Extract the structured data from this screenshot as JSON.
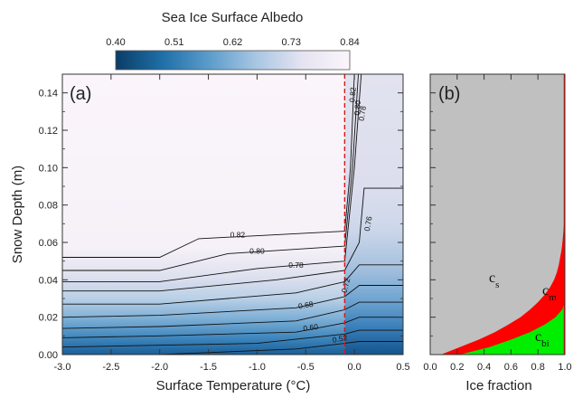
{
  "colorbar": {
    "title": "Sea Ice Surface Albedo",
    "ticks": [
      "0.40",
      "0.51",
      "0.62",
      "0.73",
      "0.84"
    ],
    "range": [
      0.4,
      0.84
    ],
    "colors": [
      "#0b3d66",
      "#1f6fa8",
      "#5c9ccb",
      "#a9c6e3",
      "#e6e4f1",
      "#fbf5fb"
    ]
  },
  "chart_data": [
    {
      "type": "contour",
      "panel_label": "(a)",
      "xlabel": "Surface Temperature (°C)",
      "ylabel": "Snow Depth (m)",
      "xlim": [
        -3.0,
        0.5
      ],
      "ylim": [
        0.0,
        0.15
      ],
      "xticks": [
        "-3.0",
        "-2.5",
        "-2.0",
        "-1.5",
        "-1.0",
        "-0.5",
        "0.0",
        "0.5"
      ],
      "yticks": [
        "0.00",
        "0.02",
        "0.04",
        "0.06",
        "0.08",
        "0.10",
        "0.12",
        "0.14"
      ],
      "threshold_line_x": -0.1,
      "contour_labels": [
        "0.82",
        "0.80",
        "0.78",
        "0.76",
        "0.72",
        "0.68",
        "0.60",
        "0.52",
        "0.82",
        "0.80",
        "0.78"
      ],
      "contours": [
        {
          "level": 0.82,
          "x": [
            -3.0,
            -2.0,
            -1.6,
            -0.1
          ],
          "y": [
            0.052,
            0.052,
            0.062,
            0.066
          ]
        },
        {
          "level": 0.8,
          "x": [
            -3.0,
            -2.0,
            -1.3,
            -0.1
          ],
          "y": [
            0.045,
            0.045,
            0.054,
            0.058
          ]
        },
        {
          "level": 0.78,
          "x": [
            -3.0,
            -2.0,
            -1.0,
            -0.1
          ],
          "y": [
            0.039,
            0.039,
            0.046,
            0.05
          ]
        },
        {
          "level": 0.76,
          "x": [
            -3.0,
            -2.0,
            -0.8,
            -0.1
          ],
          "y": [
            0.034,
            0.034,
            0.04,
            0.045
          ]
        },
        {
          "level": 0.72,
          "x": [
            -3.0,
            -2.0,
            -0.6,
            -0.1
          ],
          "y": [
            0.027,
            0.027,
            0.033,
            0.039
          ]
        },
        {
          "level": 0.68,
          "x": [
            -3.0,
            -2.0,
            -0.6,
            -0.1
          ],
          "y": [
            0.02,
            0.021,
            0.025,
            0.031
          ]
        },
        {
          "level": 0.64,
          "x": [
            -3.0,
            -2.0,
            -0.6,
            -0.1
          ],
          "y": [
            0.014,
            0.015,
            0.018,
            0.024
          ]
        },
        {
          "level": 0.6,
          "x": [
            -3.0,
            -2.0,
            -0.6,
            -0.1
          ],
          "y": [
            0.009,
            0.01,
            0.012,
            0.017
          ]
        },
        {
          "level": 0.56,
          "x": [
            -3.0,
            -1.0,
            -0.1
          ],
          "y": [
            0.004,
            0.006,
            0.011
          ]
        },
        {
          "level": 0.52,
          "x": [
            -2.0,
            -0.6,
            -0.1
          ],
          "y": [
            0.0,
            0.003,
            0.006
          ]
        },
        {
          "level": 0.82,
          "x": [
            -0.1,
            -0.04,
            0.0
          ],
          "y": [
            0.066,
            0.1,
            0.15
          ]
        },
        {
          "level": 0.8,
          "x": [
            -0.1,
            -0.02,
            0.04
          ],
          "y": [
            0.058,
            0.1,
            0.15
          ]
        },
        {
          "level": 0.78,
          "x": [
            -0.1,
            0.0,
            0.07
          ],
          "y": [
            0.05,
            0.1,
            0.15
          ]
        },
        {
          "level": 0.76,
          "x": [
            -0.1,
            0.05,
            0.1,
            0.5
          ],
          "y": [
            0.045,
            0.06,
            0.089,
            0.089
          ]
        },
        {
          "level": 0.72,
          "x": [
            -0.1,
            0.05,
            0.5
          ],
          "y": [
            0.039,
            0.048,
            0.048
          ]
        },
        {
          "level": 0.68,
          "x": [
            -0.1,
            0.05,
            0.5
          ],
          "y": [
            0.031,
            0.037,
            0.037
          ]
        },
        {
          "level": 0.64,
          "x": [
            -0.1,
            0.05,
            0.5
          ],
          "y": [
            0.024,
            0.028,
            0.028
          ]
        },
        {
          "level": 0.6,
          "x": [
            -0.1,
            0.05,
            0.5
          ],
          "y": [
            0.017,
            0.02,
            0.02
          ]
        },
        {
          "level": 0.56,
          "x": [
            -0.1,
            0.05,
            0.5
          ],
          "y": [
            0.011,
            0.013,
            0.013
          ]
        },
        {
          "level": 0.52,
          "x": [
            -0.1,
            0.05,
            0.5
          ],
          "y": [
            0.006,
            0.007,
            0.007
          ]
        }
      ]
    },
    {
      "type": "area",
      "panel_label": "(b)",
      "xlabel": "Ice fraction",
      "xlim": [
        0.0,
        1.0
      ],
      "ylim": [
        0.0,
        0.15
      ],
      "xticks": [
        "0.0",
        "0.2",
        "0.4",
        "0.6",
        "0.8",
        "1.0"
      ],
      "depth": [
        0.0,
        0.004,
        0.008,
        0.012,
        0.016,
        0.02,
        0.024,
        0.028,
        0.032,
        0.036,
        0.04,
        0.044,
        0.048,
        0.052,
        0.056,
        0.06,
        0.065,
        0.07,
        0.075,
        0.08,
        0.09,
        0.1,
        0.12,
        0.15
      ],
      "series": [
        {
          "name": "c",
          "subscript": "bi",
          "color": "#00ee00",
          "cumulative": [
            0.22,
            0.44,
            0.6,
            0.74,
            0.85,
            0.93,
            0.98,
            1.0,
            1.0,
            1.0,
            1.0,
            1.0,
            1.0,
            1.0,
            1.0,
            1.0,
            1.0,
            1.0,
            1.0,
            1.0,
            1.0,
            1.0,
            1.0,
            1.0
          ]
        },
        {
          "name": "c",
          "subscript": "m",
          "color": "#ff0000",
          "cumulative": [
            0.08,
            0.22,
            0.36,
            0.48,
            0.58,
            0.67,
            0.74,
            0.8,
            0.85,
            0.89,
            0.92,
            0.94,
            0.955,
            0.965,
            0.975,
            0.982,
            0.988,
            0.993,
            0.996,
            1.0,
            1.0,
            1.0,
            1.0,
            1.0
          ]
        },
        {
          "name": "c",
          "subscript": "s",
          "color": "#c0c0c0",
          "cumulative": [
            1.0,
            1.0,
            1.0,
            1.0,
            1.0,
            1.0,
            1.0,
            1.0,
            1.0,
            1.0,
            1.0,
            1.0,
            1.0,
            1.0,
            1.0,
            1.0,
            1.0,
            1.0,
            1.0,
            1.0,
            1.0,
            1.0,
            1.0,
            1.0
          ]
        }
      ]
    }
  ]
}
